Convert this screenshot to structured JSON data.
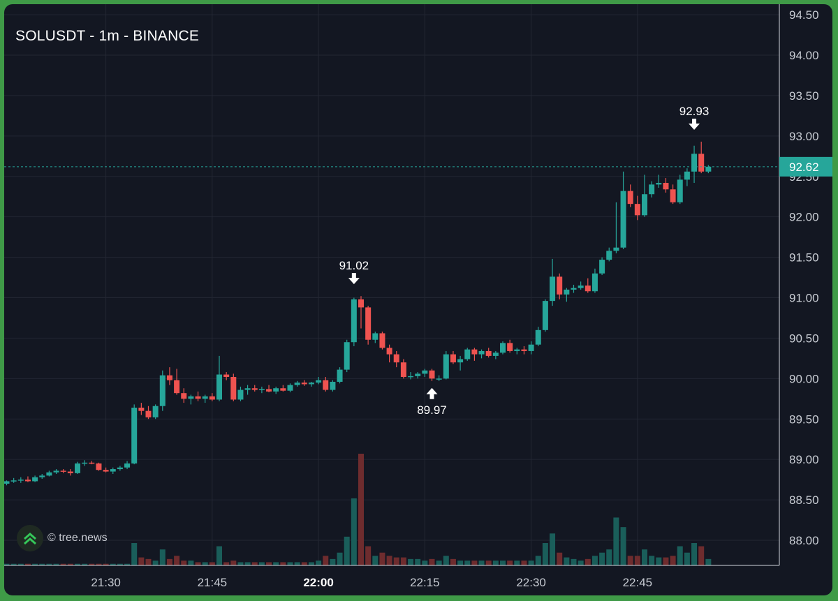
{
  "header": {
    "title": "SOLUSDT - 1m - BINANCE"
  },
  "watermark": {
    "text": "© tree.news",
    "icon": "tree-news-logo-icon"
  },
  "colors": {
    "background": "#131722",
    "grid": "#232733",
    "up": "#26a69a",
    "down": "#ef5350",
    "upVolume": "#1a5e5a",
    "downVolume": "#6e2c2e",
    "axisText": "#c8ccd3",
    "currentPrice": "#26a69a",
    "frame": "#3f9a47"
  },
  "chart_data": {
    "type": "candlestick",
    "symbol": "SOLUSDT",
    "interval": "1m",
    "exchange": "BINANCE",
    "y_ticks": [
      "94.50",
      "94.00",
      "93.50",
      "93.00",
      "92.50",
      "92.00",
      "91.50",
      "91.00",
      "90.50",
      "90.00",
      "89.50",
      "89.00",
      "88.50",
      "88.00"
    ],
    "ylim": [
      87.7,
      94.55
    ],
    "x_ticks": [
      {
        "label": "21:30",
        "bold": false,
        "index": 14
      },
      {
        "label": "21:45",
        "bold": false,
        "index": 29
      },
      {
        "label": "22:00",
        "bold": true,
        "index": 44
      },
      {
        "label": "22:15",
        "bold": false,
        "index": 59
      },
      {
        "label": "22:30",
        "bold": false,
        "index": 74
      },
      {
        "label": "22:45",
        "bold": false,
        "index": 89
      }
    ],
    "current_price": {
      "value": 92.62,
      "label": "92.62"
    },
    "annotations": [
      {
        "label": "91.02",
        "index": 49,
        "value": 91.02,
        "kind": "high"
      },
      {
        "label": "89.97",
        "index": 60,
        "value": 89.97,
        "kind": "low"
      },
      {
        "label": "92.93",
        "index": 97,
        "value": 92.93,
        "kind": "high"
      }
    ],
    "candles": [
      [
        88.7,
        88.74,
        88.68,
        88.73,
        1
      ],
      [
        88.73,
        88.77,
        88.71,
        88.74,
        1
      ],
      [
        88.74,
        88.78,
        88.71,
        88.75,
        1
      ],
      [
        88.75,
        88.79,
        88.72,
        88.73,
        1
      ],
      [
        88.73,
        88.8,
        88.72,
        88.78,
        1
      ],
      [
        88.78,
        88.82,
        88.76,
        88.8,
        1
      ],
      [
        88.8,
        88.86,
        88.79,
        88.84,
        1
      ],
      [
        88.84,
        88.88,
        88.82,
        88.86,
        1
      ],
      [
        88.86,
        88.88,
        88.83,
        88.85,
        1
      ],
      [
        88.85,
        88.88,
        88.8,
        88.83,
        1
      ],
      [
        88.83,
        88.97,
        88.82,
        88.95,
        1
      ],
      [
        88.95,
        88.99,
        88.92,
        88.96,
        1
      ],
      [
        88.96,
        88.98,
        88.94,
        88.95,
        1
      ],
      [
        88.95,
        88.96,
        88.86,
        88.87,
        1
      ],
      [
        88.87,
        88.9,
        88.84,
        88.85,
        1
      ],
      [
        88.85,
        88.9,
        88.82,
        88.88,
        1
      ],
      [
        88.88,
        88.92,
        88.86,
        88.9,
        1
      ],
      [
        88.9,
        88.98,
        88.88,
        88.95,
        1
      ],
      [
        88.95,
        89.68,
        88.94,
        89.64,
        14
      ],
      [
        89.64,
        89.7,
        89.55,
        89.6,
        5
      ],
      [
        89.6,
        89.66,
        89.5,
        89.52,
        4
      ],
      [
        89.52,
        89.68,
        89.5,
        89.66,
        3
      ],
      [
        89.66,
        90.1,
        89.6,
        90.04,
        10
      ],
      [
        90.04,
        90.14,
        89.92,
        89.98,
        4
      ],
      [
        89.98,
        90.12,
        89.8,
        89.82,
        6
      ],
      [
        89.82,
        89.88,
        89.7,
        89.75,
        3
      ],
      [
        89.75,
        89.8,
        89.68,
        89.78,
        3
      ],
      [
        89.78,
        89.84,
        89.72,
        89.75,
        2
      ],
      [
        89.75,
        89.8,
        89.7,
        89.78,
        2
      ],
      [
        89.78,
        89.82,
        89.72,
        89.74,
        2
      ],
      [
        89.74,
        90.28,
        89.72,
        90.05,
        12
      ],
      [
        90.05,
        90.08,
        89.98,
        90.02,
        2
      ],
      [
        90.02,
        90.06,
        89.72,
        89.74,
        3
      ],
      [
        89.74,
        89.9,
        89.72,
        89.86,
        2
      ],
      [
        89.86,
        89.92,
        89.8,
        89.88,
        2
      ],
      [
        89.88,
        89.92,
        89.84,
        89.86,
        2
      ],
      [
        89.86,
        89.9,
        89.82,
        89.87,
        2
      ],
      [
        89.87,
        89.92,
        89.83,
        89.84,
        2
      ],
      [
        89.84,
        89.9,
        89.81,
        89.88,
        2
      ],
      [
        89.88,
        89.92,
        89.84,
        89.85,
        2
      ],
      [
        89.85,
        89.94,
        89.83,
        89.92,
        2
      ],
      [
        89.92,
        89.97,
        89.9,
        89.95,
        2
      ],
      [
        89.95,
        89.98,
        89.91,
        89.93,
        2
      ],
      [
        89.93,
        89.96,
        89.9,
        89.95,
        2
      ],
      [
        89.95,
        90.02,
        89.93,
        89.98,
        3
      ],
      [
        89.98,
        90.02,
        89.84,
        89.86,
        6
      ],
      [
        89.86,
        89.98,
        89.84,
        89.96,
        4
      ],
      [
        89.96,
        90.14,
        89.94,
        90.11,
        8
      ],
      [
        90.11,
        90.48,
        90.08,
        90.45,
        18
      ],
      [
        90.45,
        91.0,
        90.4,
        90.98,
        42
      ],
      [
        90.98,
        91.02,
        90.62,
        90.88,
        70
      ],
      [
        90.88,
        90.9,
        90.42,
        90.48,
        12
      ],
      [
        90.48,
        90.58,
        90.44,
        90.56,
        6
      ],
      [
        90.56,
        90.58,
        90.36,
        90.38,
        8
      ],
      [
        90.38,
        90.42,
        90.2,
        90.3,
        6
      ],
      [
        90.3,
        90.34,
        90.14,
        90.2,
        5
      ],
      [
        90.2,
        90.24,
        90.0,
        90.02,
        5
      ],
      [
        90.02,
        90.08,
        89.99,
        90.03,
        4
      ],
      [
        90.03,
        90.08,
        90.0,
        90.06,
        4
      ],
      [
        90.06,
        90.12,
        90.02,
        90.1,
        3
      ],
      [
        90.1,
        90.12,
        89.97,
        90.0,
        4
      ],
      [
        90.0,
        90.04,
        89.97,
        90.0,
        3
      ],
      [
        90.0,
        90.34,
        89.99,
        90.3,
        6
      ],
      [
        90.3,
        90.34,
        90.18,
        90.2,
        4
      ],
      [
        90.2,
        90.28,
        90.1,
        90.24,
        3
      ],
      [
        90.24,
        90.38,
        90.22,
        90.36,
        3
      ],
      [
        90.36,
        90.38,
        90.22,
        90.3,
        3
      ],
      [
        90.3,
        90.36,
        90.25,
        90.34,
        3
      ],
      [
        90.34,
        90.38,
        90.26,
        90.28,
        3
      ],
      [
        90.28,
        90.34,
        90.24,
        90.32,
        3
      ],
      [
        90.32,
        90.46,
        90.3,
        90.44,
        3
      ],
      [
        90.44,
        90.48,
        90.32,
        90.34,
        3
      ],
      [
        90.34,
        90.38,
        90.3,
        90.36,
        3
      ],
      [
        90.36,
        90.4,
        90.3,
        90.34,
        3
      ],
      [
        90.34,
        90.46,
        90.3,
        90.42,
        3
      ],
      [
        90.42,
        90.64,
        90.4,
        90.6,
        6
      ],
      [
        90.6,
        90.98,
        90.58,
        90.96,
        14
      ],
      [
        90.96,
        91.48,
        90.9,
        91.26,
        20
      ],
      [
        91.26,
        91.3,
        90.98,
        91.04,
        8
      ],
      [
        91.04,
        91.12,
        90.95,
        91.1,
        5
      ],
      [
        91.1,
        91.16,
        91.06,
        91.12,
        4
      ],
      [
        91.12,
        91.2,
        91.1,
        91.15,
        3
      ],
      [
        91.15,
        91.24,
        91.06,
        91.08,
        4
      ],
      [
        91.08,
        91.36,
        91.06,
        91.3,
        6
      ],
      [
        91.3,
        91.5,
        91.28,
        91.47,
        8
      ],
      [
        91.47,
        91.62,
        91.45,
        91.58,
        10
      ],
      [
        91.58,
        92.18,
        91.55,
        91.62,
        30
      ],
      [
        91.62,
        92.56,
        91.6,
        92.32,
        24
      ],
      [
        92.32,
        92.4,
        92.12,
        92.16,
        6
      ],
      [
        92.16,
        92.26,
        91.96,
        92.02,
        6
      ],
      [
        92.02,
        92.52,
        92.0,
        92.28,
        10
      ],
      [
        92.28,
        92.44,
        92.24,
        92.4,
        6
      ],
      [
        92.4,
        92.52,
        92.36,
        92.42,
        5
      ],
      [
        92.42,
        92.48,
        92.3,
        92.34,
        5
      ],
      [
        92.34,
        92.4,
        92.16,
        92.18,
        6
      ],
      [
        92.18,
        92.52,
        92.16,
        92.46,
        12
      ],
      [
        92.46,
        92.6,
        92.38,
        92.56,
        8
      ],
      [
        92.56,
        92.88,
        92.42,
        92.78,
        14
      ],
      [
        92.78,
        92.93,
        92.54,
        92.56,
        12
      ],
      [
        92.56,
        92.64,
        92.54,
        92.62,
        4
      ]
    ]
  }
}
